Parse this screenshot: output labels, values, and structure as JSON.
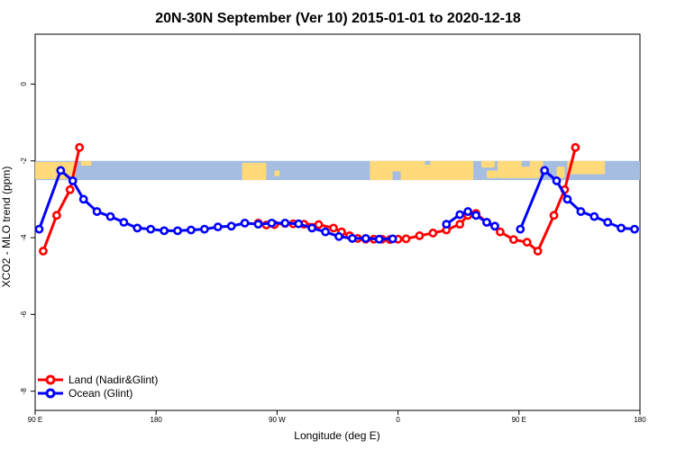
{
  "chart_data": {
    "type": "line",
    "title": "20N-30N September (Ver 10)   2015-01-01 to 2020-12-18",
    "xlabel": "Longitude (deg E)",
    "ylabel": "XCO2 - MLO trend (ppm)",
    "xlim": [
      90,
      540
    ],
    "ylim": [
      -8.5,
      1.3
    ],
    "xticks": [
      {
        "value": 90,
        "label": "90 E"
      },
      {
        "value": 180,
        "label": "180"
      },
      {
        "value": 270,
        "label": "90 W"
      },
      {
        "value": 360,
        "label": "0"
      },
      {
        "value": 450,
        "label": "90 E"
      },
      {
        "value": 540,
        "label": "180"
      }
    ],
    "yticks": [
      {
        "value": 0,
        "label": "0"
      },
      {
        "value": -2,
        "label": "-2"
      },
      {
        "value": -4,
        "label": "-4"
      },
      {
        "value": -6,
        "label": "-6"
      },
      {
        "value": -8,
        "label": "-8"
      }
    ],
    "map_strip": {
      "ymin": -2.5,
      "ymax": -2.0,
      "description": "world land/ocean map strip 20N-30N"
    },
    "series": [
      {
        "name": "Land (Nadir&Glint)",
        "color": "#ff0000",
        "segments": [
          {
            "x": [
              96,
              106,
              116,
              123
            ],
            "y": [
              -4.35,
              -3.42,
              -2.75,
              -1.65
            ]
          },
          {
            "x": [
              256,
              262,
              268,
              276,
              282,
              290,
              301,
              312,
              318,
              324,
              330,
              336,
              342,
              348,
              354,
              360,
              366,
              376,
              386,
              396,
              406,
              412,
              418,
              426,
              436,
              446,
              456,
              464,
              476,
              484,
              492
            ],
            "y": [
              -3.62,
              -3.67,
              -3.66,
              -3.63,
              -3.64,
              -3.65,
              -3.66,
              -3.75,
              -3.85,
              -3.95,
              -4.02,
              -4.04,
              -4.04,
              -4.04,
              -4.05,
              -4.04,
              -4.03,
              -3.95,
              -3.88,
              -3.8,
              -3.65,
              -3.42,
              -3.37,
              -3.6,
              -3.85,
              -4.05,
              -4.12,
              -4.35,
              -3.42,
              -2.75,
              -1.65
            ]
          }
        ]
      },
      {
        "name": "Ocean (Glint)",
        "color": "#0000ff",
        "segments": [
          {
            "x": [
              93,
              109,
              118,
              126,
              136,
              146,
              156,
              166,
              176,
              186,
              196,
              206,
              216,
              226,
              236,
              246,
              256,
              266,
              276,
              286,
              296,
              306,
              316,
              326,
              336,
              346,
              356
            ],
            "y": [
              -3.78,
              -2.25,
              -2.52,
              -3.0,
              -3.32,
              -3.45,
              -3.6,
              -3.75,
              -3.78,
              -3.82,
              -3.82,
              -3.8,
              -3.78,
              -3.72,
              -3.7,
              -3.62,
              -3.65,
              -3.62,
              -3.62,
              -3.64,
              -3.75,
              -3.85,
              -3.97,
              -4.02,
              -4.02,
              -4.04,
              -4.03
            ],
            "skip_first_gap": false
          },
          {
            "x": [
              396,
              406,
              412,
              418,
              426,
              432
            ],
            "y": [
              -3.65,
              -3.4,
              -3.32,
              -3.42,
              -3.6,
              -3.7
            ]
          },
          {
            "x": [
              451,
              469,
              478,
              486,
              496,
              506,
              516,
              526,
              536
            ],
            "y": [
              -3.78,
              -2.25,
              -2.52,
              -3.0,
              -3.32,
              -3.45,
              -3.6,
              -3.75,
              -3.78
            ]
          }
        ]
      }
    ],
    "legend": {
      "position": "bottom-left",
      "entries": [
        "Land (Nadir&Glint)",
        "Ocean (Glint)"
      ]
    }
  }
}
